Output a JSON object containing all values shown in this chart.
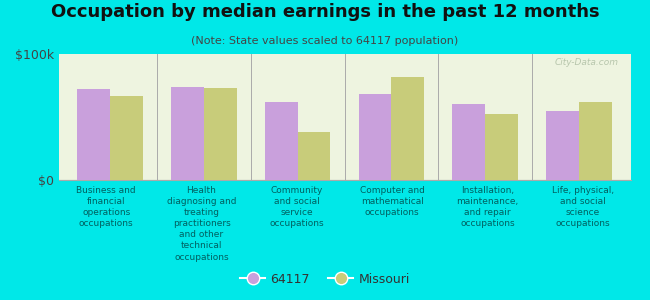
{
  "title": "Occupation by median earnings in the past 12 months",
  "subtitle": "(Note: State values scaled to 64117 population)",
  "categories": [
    "Business and\nfinancial\noperations\noccupations",
    "Health\ndiagnosing and\ntreating\npractitioners\nand other\ntechnical\noccupations",
    "Community\nand social\nservice\noccupations",
    "Computer and\nmathematical\noccupations",
    "Installation,\nmaintenance,\nand repair\noccupations",
    "Life, physical,\nand social\nscience\noccupations"
  ],
  "values_64117": [
    72000,
    74000,
    62000,
    68000,
    60000,
    55000
  ],
  "values_missouri": [
    67000,
    73000,
    38000,
    82000,
    52000,
    62000
  ],
  "color_64117": "#c9a0dc",
  "color_missouri": "#c8cc7a",
  "ylim": [
    0,
    100000
  ],
  "yticks": [
    0,
    100000
  ],
  "ytick_labels": [
    "$0",
    "$100k"
  ],
  "background_color": "#00e8e8",
  "plot_bg_color": "#eef4e0",
  "bar_width": 0.35,
  "legend_label_64117": "64117",
  "legend_label_missouri": "Missouri",
  "watermark": "City-Data.com",
  "title_fontsize": 13,
  "subtitle_fontsize": 8,
  "label_fontsize": 6.5,
  "legend_fontsize": 9
}
